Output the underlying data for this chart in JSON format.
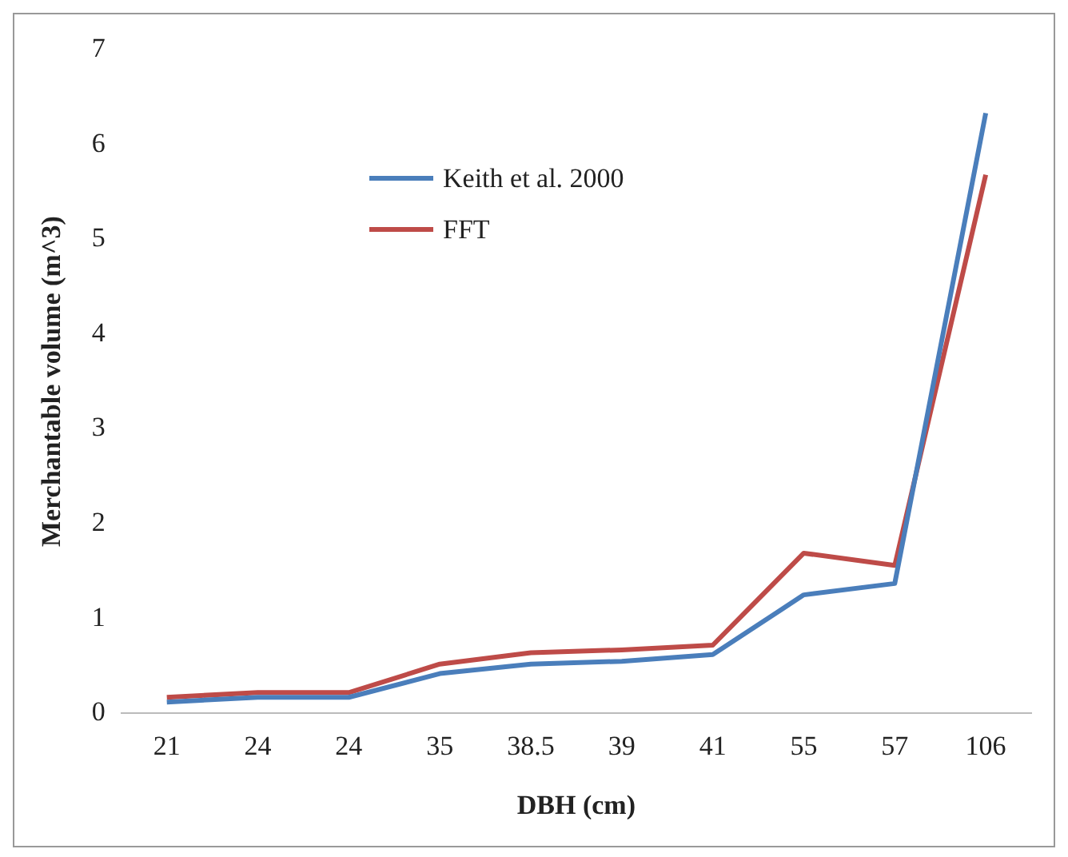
{
  "chart_data": {
    "type": "line",
    "xlabel": "DBH (cm)",
    "ylabel": "Merchantable volume (m^3)",
    "categories": [
      "21",
      "24",
      "24",
      "35",
      "38.5",
      "39",
      "41",
      "55",
      "57",
      "106"
    ],
    "series": [
      {
        "name": "Keith et al. 2000",
        "color": "#4a7ebb",
        "values": [
          0.12,
          0.17,
          0.17,
          0.42,
          0.52,
          0.55,
          0.62,
          1.25,
          1.37,
          6.33
        ]
      },
      {
        "name": "FFT",
        "color": "#be4b48",
        "values": [
          0.17,
          0.22,
          0.22,
          0.52,
          0.64,
          0.67,
          0.72,
          1.69,
          1.56,
          5.68
        ]
      }
    ],
    "ylim": [
      0,
      7
    ],
    "yticks": [
      0,
      1,
      2,
      3,
      4,
      5,
      6,
      7
    ],
    "grid": false,
    "legend": "top left",
    "marker": "none",
    "line_style": "solid"
  }
}
